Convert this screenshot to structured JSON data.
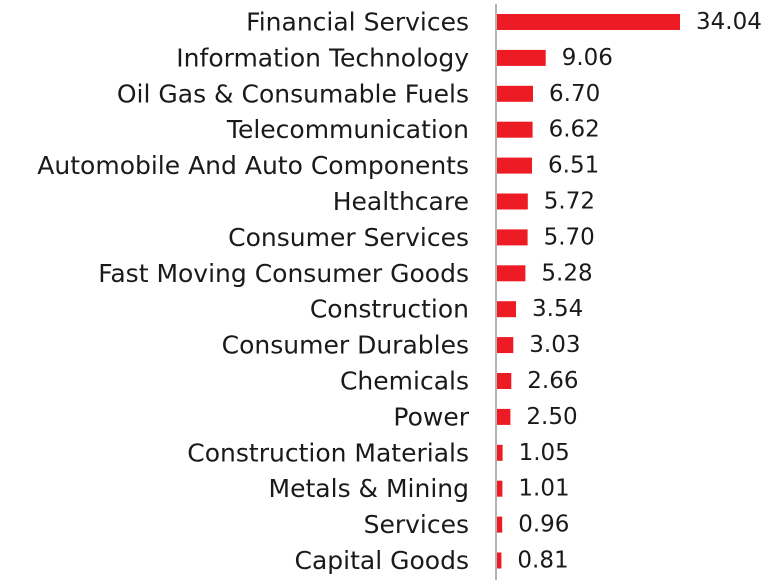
{
  "chart_data": {
    "type": "bar",
    "orientation": "horizontal",
    "title": "",
    "xlabel": "",
    "ylabel": "",
    "categories": [
      "Financial Services",
      "Information Technology",
      "Oil Gas & Consumable Fuels",
      "Telecommunication",
      "Automobile And Auto Components",
      "Healthcare",
      "Consumer Services",
      "Fast Moving Consumer Goods",
      "Construction",
      "Consumer Durables",
      "Chemicals",
      "Power",
      "Construction Materials",
      "Metals & Mining",
      "Services",
      "Capital Goods"
    ],
    "values": [
      34.04,
      9.06,
      6.7,
      6.62,
      6.51,
      5.72,
      5.7,
      5.28,
      3.54,
      3.03,
      2.66,
      2.5,
      1.05,
      1.01,
      0.96,
      0.81
    ],
    "value_labels": [
      "34.04",
      "9.06",
      "6.70",
      "6.62",
      "6.51",
      "5.72",
      "5.70",
      "5.28",
      "3.54",
      "3.03",
      "2.66",
      "2.50",
      "1.05",
      "1.01",
      "0.96",
      "0.81"
    ],
    "xlim": [
      0,
      34.04
    ],
    "grid": false,
    "legend": "none",
    "bar_color": "#ed1c24",
    "axis_color": "#b3b3b3"
  }
}
